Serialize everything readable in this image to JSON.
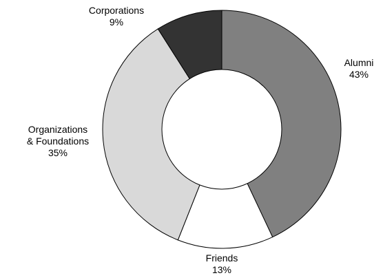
{
  "chart_data": {
    "type": "pie",
    "variant": "donut",
    "title": "",
    "slices": [
      {
        "label": "Alumni",
        "value": 43,
        "value_label": "43%",
        "color": "#808080"
      },
      {
        "label": "Friends",
        "value": 13,
        "value_label": "13%",
        "color": "#ffffff"
      },
      {
        "label": "Organizations & Foundations",
        "label_lines": [
          "Organizations",
          "& Foundations"
        ],
        "value": 35,
        "value_label": "35%",
        "color": "#d9d9d9"
      },
      {
        "label": "Corporations",
        "value": 9,
        "value_label": "9%",
        "color": "#333333"
      }
    ],
    "start_angle": "12 o'clock",
    "direction": "clockwise",
    "legend": "none",
    "outline_color": "#000000",
    "background": "#ffffff"
  }
}
